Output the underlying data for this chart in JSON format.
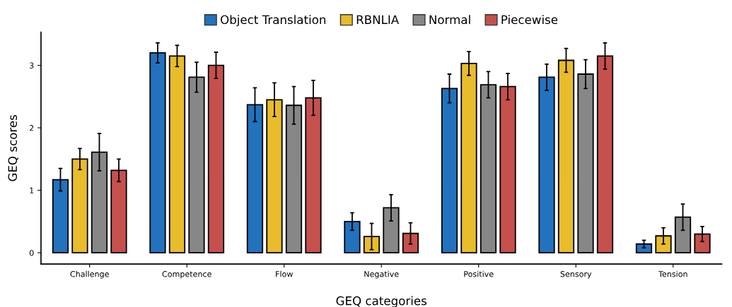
{
  "chart_data": {
    "type": "bar",
    "xlabel": "GEQ categories",
    "ylabel": "GEQ scores",
    "categories": [
      "Challenge",
      "Competence",
      "Flow",
      "Negative",
      "Positive",
      "Sensory",
      "Tension"
    ],
    "series": [
      {
        "name": "Object Translation",
        "color": "#2272be",
        "values": [
          1.17,
          3.2,
          2.37,
          0.5,
          2.63,
          2.81,
          0.14
        ],
        "errors": [
          0.18,
          0.16,
          0.27,
          0.14,
          0.23,
          0.21,
          0.06
        ]
      },
      {
        "name": "RBNLIA",
        "color": "#e9bc2c",
        "values": [
          1.5,
          3.15,
          2.45,
          0.26,
          3.03,
          3.08,
          0.27
        ],
        "errors": [
          0.17,
          0.17,
          0.27,
          0.21,
          0.19,
          0.19,
          0.13
        ]
      },
      {
        "name": "Normal",
        "color": "#878787",
        "values": [
          1.61,
          2.81,
          2.36,
          0.72,
          2.69,
          2.86,
          0.57
        ],
        "errors": [
          0.3,
          0.24,
          0.3,
          0.21,
          0.21,
          0.23,
          0.21
        ]
      },
      {
        "name": "Piecewise",
        "color": "#c6504c",
        "values": [
          1.32,
          3.0,
          2.48,
          0.31,
          2.66,
          3.15,
          0.3
        ],
        "errors": [
          0.18,
          0.21,
          0.28,
          0.17,
          0.21,
          0.21,
          0.12
        ]
      }
    ],
    "ylim": [
      -0.18,
      3.53
    ],
    "yticks": [
      0,
      1,
      2,
      3
    ],
    "grid": false,
    "legend": "top"
  }
}
